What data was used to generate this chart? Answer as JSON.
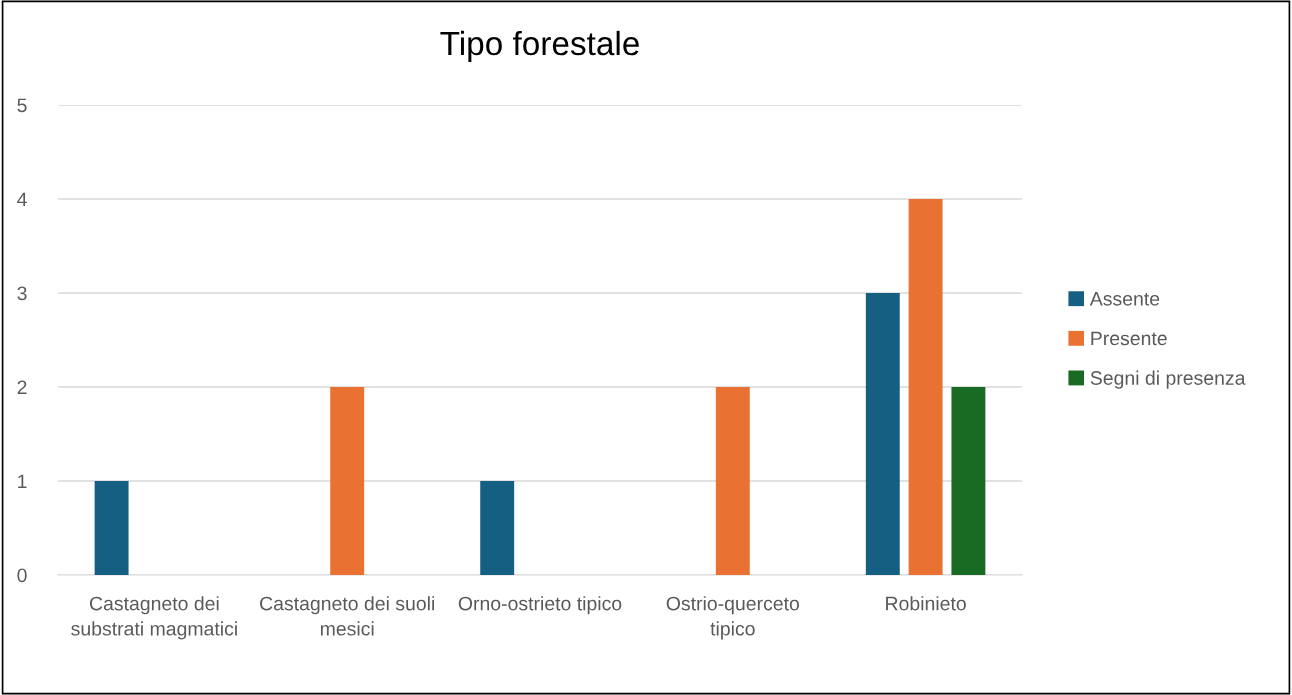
{
  "chart_data": {
    "type": "bar",
    "title": "Tipo forestale",
    "categories": [
      "Castagneto dei substrati magmatici",
      "Castagneto dei suoli mesici",
      "Orno-ostrieto tipico",
      "Ostrio-querceto tipico",
      "Robinieto"
    ],
    "series": [
      {
        "name": "Assente",
        "color": "#156082",
        "values": [
          1,
          0,
          1,
          0,
          3
        ]
      },
      {
        "name": "Presente",
        "color": "#e97132",
        "values": [
          0,
          2,
          0,
          2,
          4
        ]
      },
      {
        "name": "Segni di presenza",
        "color": "#196b24",
        "values": [
          0,
          0,
          0,
          0,
          2
        ]
      }
    ],
    "ylim": [
      0,
      5
    ],
    "yticks": [
      0,
      1,
      2,
      3,
      4,
      5
    ],
    "grid": "y",
    "legend": "right"
  }
}
